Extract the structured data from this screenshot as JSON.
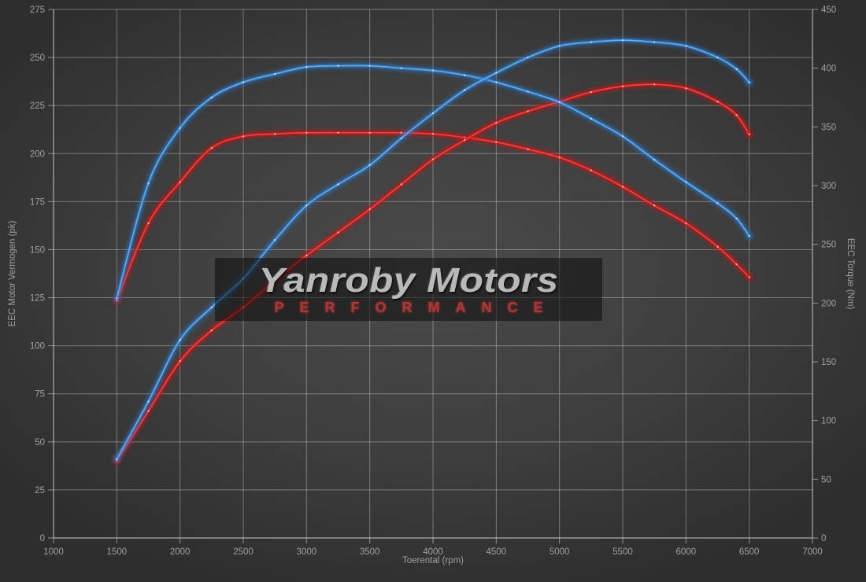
{
  "watermark": {
    "brand": "Yanroby Motors",
    "subtitle": "PERFORMANCE"
  },
  "style": {
    "bg_center": "#4a4a4a",
    "bg_mid": "#3e3e3e",
    "bg_edge": "#2e2e2e",
    "grid_color": "rgba(222,222,222,0.40)",
    "axis_color": "rgba(228,228,228,0.55)",
    "text_color": "#a0a0a0",
    "watermark_bg": "rgba(12,12,12,0.55)",
    "brand_color": "#b9b9b9",
    "subtitle_color": "#b23535"
  },
  "chart_data": {
    "type": "line",
    "title": "",
    "xlabel": "Toerental (rpm)",
    "ylabel_left": "EEC Motor Vermogen (pk)",
    "ylabel_right": "EEC Torque (Nm)",
    "xlim": [
      1000,
      7000
    ],
    "ylim_left": [
      0,
      275
    ],
    "ylim_right": [
      0,
      450
    ],
    "grid": true,
    "legend_position": "none",
    "x_ticks": [
      1000,
      1500,
      2000,
      2500,
      3000,
      3500,
      4000,
      4500,
      5000,
      5500,
      6000,
      6500,
      7000
    ],
    "y_ticks_left": [
      0,
      25,
      50,
      75,
      100,
      125,
      150,
      175,
      200,
      225,
      250,
      275
    ],
    "y_ticks_right": [
      0,
      50,
      100,
      150,
      200,
      250,
      300,
      350,
      400,
      450
    ],
    "rpm": [
      1500,
      1750,
      2000,
      2250,
      2500,
      2750,
      3000,
      3250,
      3500,
      3750,
      4000,
      4250,
      4500,
      4750,
      5000,
      5250,
      5500,
      5750,
      6000,
      6250,
      6400,
      6500
    ],
    "series": [
      {
        "name": "torque-red",
        "axis": "right",
        "unit": "Nm",
        "color": "#ef4040",
        "glow": "#cc1515",
        "marker": "#ffc9c9",
        "values": [
          202,
          268,
          303,
          332,
          342,
          344,
          345,
          345,
          345,
          345,
          344,
          341,
          337,
          331,
          324,
          313,
          299,
          283,
          268,
          248,
          233,
          222
        ]
      },
      {
        "name": "vermogen-red",
        "axis": "left",
        "unit": "pk",
        "color": "#ef4040",
        "glow": "#cc1515",
        "marker": "#ffc9c9",
        "values": [
          40,
          66,
          92,
          108,
          120,
          134,
          147,
          159,
          171,
          184,
          197,
          207,
          216,
          222,
          227,
          232,
          235,
          236,
          234,
          227,
          220,
          210
        ]
      },
      {
        "name": "torque-blue",
        "axis": "right",
        "unit": "Nm",
        "color": "#66aae2",
        "glow": "#2b78cc",
        "marker": "#d6eaff",
        "values": [
          204,
          302,
          349,
          375,
          388,
          395,
          401,
          402,
          402,
          400,
          398,
          394,
          388,
          380,
          371,
          357,
          342,
          322,
          303,
          285,
          272,
          257
        ]
      },
      {
        "name": "vermogen-blue",
        "axis": "left",
        "unit": "pk",
        "color": "#66aae2",
        "glow": "#2b78cc",
        "marker": "#d6eaff",
        "values": [
          41,
          71,
          103,
          120,
          135,
          155,
          173,
          184,
          194,
          208,
          221,
          233,
          242,
          250,
          256,
          258,
          259,
          258,
          256,
          250,
          244,
          237
        ]
      }
    ]
  }
}
